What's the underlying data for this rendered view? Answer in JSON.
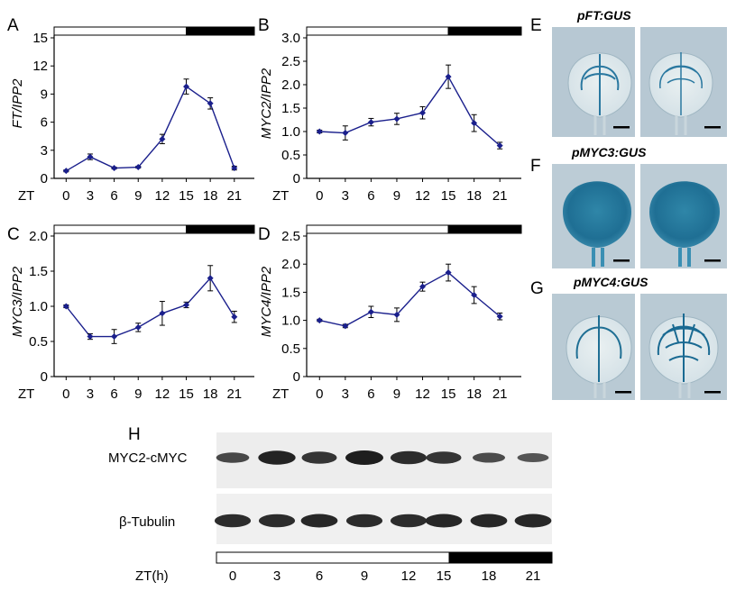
{
  "panel_letters": {
    "a": "A",
    "b": "B",
    "c": "C",
    "d": "D",
    "e": "E",
    "f": "F",
    "g": "G",
    "h": "H"
  },
  "x_axis_prefix": "ZT",
  "colors": {
    "series": "#1a1f8c",
    "day_bar": "#ffffff",
    "night_bar": "#000000",
    "gus_bg": "#b9cbd6",
    "gus_stain": "#1f7fa8"
  },
  "chart_data": [
    {
      "type": "line",
      "panel": "A",
      "x": [
        0,
        3,
        6,
        9,
        12,
        15,
        18,
        21
      ],
      "x_ticks": [
        "0",
        "3",
        "6",
        "9",
        "12",
        "15",
        "18",
        "21"
      ],
      "y_ticks": [
        "0",
        "3",
        "6",
        "9",
        "12",
        "15"
      ],
      "ylabel": "FT/IPP2",
      "ylim": [
        0,
        15
      ],
      "light_period": {
        "day": [
          0,
          15
        ],
        "night": [
          15,
          24
        ]
      },
      "series": [
        {
          "values": [
            0.8,
            2.3,
            1.1,
            1.2,
            4.2,
            9.8,
            8.0,
            1.1
          ],
          "errors": [
            0.1,
            0.3,
            0.1,
            0.1,
            0.5,
            0.8,
            0.6,
            0.2
          ]
        }
      ]
    },
    {
      "type": "line",
      "panel": "B",
      "x": [
        0,
        3,
        6,
        9,
        12,
        15,
        18,
        21
      ],
      "x_ticks": [
        "0",
        "3",
        "6",
        "9",
        "12",
        "15",
        "18",
        "21"
      ],
      "y_ticks": [
        "0",
        "0.5",
        "1.0",
        "1.5",
        "2.0",
        "2.5",
        "3.0"
      ],
      "ylabel": "MYC2/IPP2",
      "ylim": [
        0,
        3.0
      ],
      "light_period": {
        "day": [
          0,
          15
        ],
        "night": [
          15,
          24
        ]
      },
      "series": [
        {
          "values": [
            1.0,
            0.97,
            1.2,
            1.27,
            1.4,
            2.17,
            1.18,
            0.7
          ],
          "errors": [
            0.03,
            0.15,
            0.08,
            0.12,
            0.13,
            0.25,
            0.18,
            0.07
          ]
        }
      ]
    },
    {
      "type": "line",
      "panel": "C",
      "x": [
        0,
        3,
        6,
        9,
        12,
        15,
        18,
        21
      ],
      "x_ticks": [
        "0",
        "3",
        "6",
        "9",
        "12",
        "15",
        "18",
        "21"
      ],
      "y_ticks": [
        "0",
        "0.5",
        "1.0",
        "1.5",
        "2.0"
      ],
      "ylabel": "MYC3/IPP2",
      "ylim": [
        0,
        2.0
      ],
      "light_period": {
        "day": [
          0,
          15
        ],
        "night": [
          15,
          24
        ]
      },
      "series": [
        {
          "values": [
            1.0,
            0.57,
            0.57,
            0.7,
            0.9,
            1.02,
            1.4,
            0.85
          ],
          "errors": [
            0.02,
            0.04,
            0.1,
            0.06,
            0.17,
            0.04,
            0.18,
            0.08
          ]
        }
      ]
    },
    {
      "type": "line",
      "panel": "D",
      "x": [
        0,
        3,
        6,
        9,
        12,
        15,
        18,
        21
      ],
      "x_ticks": [
        "0",
        "3",
        "6",
        "9",
        "12",
        "15",
        "18",
        "21"
      ],
      "y_ticks": [
        "0",
        "0.5",
        "1.0",
        "1.5",
        "2.0",
        "2.5"
      ],
      "ylabel": "MYC4/IPP2",
      "ylim": [
        0,
        2.5
      ],
      "light_period": {
        "day": [
          0,
          15
        ],
        "night": [
          15,
          24
        ]
      },
      "series": [
        {
          "values": [
            1.0,
            0.9,
            1.15,
            1.1,
            1.6,
            1.85,
            1.45,
            1.07
          ],
          "errors": [
            0.02,
            0.03,
            0.1,
            0.12,
            0.08,
            0.15,
            0.15,
            0.06
          ]
        }
      ]
    }
  ],
  "gus_panels": {
    "e": {
      "title": "pFT:GUS"
    },
    "f": {
      "title": "pMYC3:GUS"
    },
    "g": {
      "title": "pMYC4:GUS"
    }
  },
  "western_blot": {
    "rows": [
      {
        "label": "MYC2-cMYC",
        "band_intensity": [
          0.55,
          0.95,
          0.75,
          1.0,
          0.85,
          0.75,
          0.5,
          0.4
        ]
      },
      {
        "label": "β-Tubulin",
        "band_intensity": [
          0.85,
          0.85,
          0.9,
          0.85,
          0.85,
          0.9,
          0.9,
          0.9
        ]
      }
    ],
    "time_label": "ZT(h)",
    "time_points": [
      "0",
      "3",
      "6",
      "9",
      "12",
      "15",
      "18",
      "21"
    ],
    "light_period": {
      "day": [
        0,
        15
      ],
      "night": [
        15,
        24
      ]
    }
  }
}
